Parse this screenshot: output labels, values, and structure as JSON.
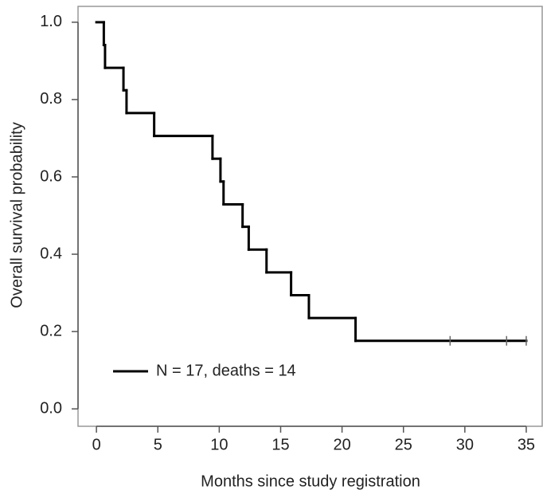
{
  "chart_data": {
    "type": "step",
    "xlabel": "Months since study registration",
    "ylabel": "Overall survival probability",
    "xlim": [
      -1.5,
      36.3
    ],
    "ylim": [
      -0.045,
      1.041
    ],
    "xticks": [
      0,
      5,
      10,
      15,
      20,
      25,
      30,
      35
    ],
    "yticks": [
      {
        "value": 0,
        "label": "0.0"
      },
      0.2,
      0.4,
      0.6,
      0.8,
      {
        "value": 1,
        "label": "1.0"
      }
    ],
    "legend": "bottom-left",
    "series": [
      {
        "name": "N = 17, deaths = 14",
        "color": "#000000",
        "x": [
          0,
          0.6,
          0.7,
          2.2,
          2.45,
          4.7,
          9.45,
          10.1,
          10.35,
          11.9,
          12.4,
          13.85,
          15.85,
          17.3,
          21.1
        ],
        "values": [
          1,
          0.941,
          0.882,
          0.824,
          0.765,
          0.706,
          0.647,
          0.588,
          0.529,
          0.471,
          0.412,
          0.353,
          0.294,
          0.235,
          0.176
        ],
        "censor_x": [
          28.8,
          33.4,
          35.0
        ],
        "censor_values": [
          0.176,
          0.176,
          0.176
        ]
      }
    ]
  }
}
